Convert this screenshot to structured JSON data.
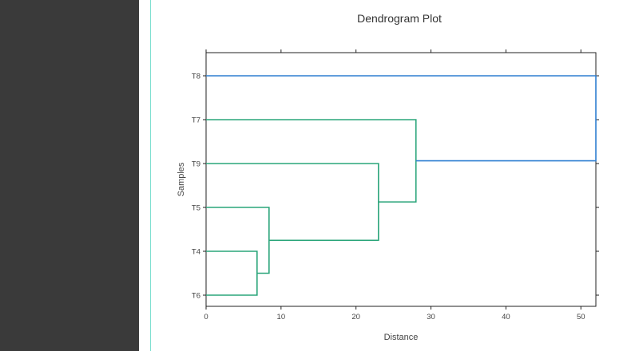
{
  "chart_data": {
    "type": "dendrogram",
    "title": "Dendrogram Plot",
    "xlabel": "Distance",
    "ylabel": "Samples",
    "xlim": [
      0,
      52
    ],
    "xticks": [
      0,
      10,
      20,
      30,
      40,
      50
    ],
    "leaves": [
      "T8",
      "T7",
      "T9",
      "T5",
      "T4",
      "T6"
    ],
    "merges": [
      {
        "left": "T4",
        "right": "T6",
        "distance": 6.8
      },
      {
        "left": "T5",
        "right": "T4+T6",
        "distance": 8.4
      },
      {
        "left": "T9",
        "right": "T5+T4+T6",
        "distance": 23
      },
      {
        "left": "T7",
        "right": "T9+T5+T4+T6",
        "distance": 28
      },
      {
        "left": "T8",
        "right": "T7+T9+T5+T4+T6",
        "distance": 52
      }
    ],
    "colors": {
      "cluster": "#2aa57a",
      "root": "#2f7fd1"
    },
    "grid": false
  }
}
